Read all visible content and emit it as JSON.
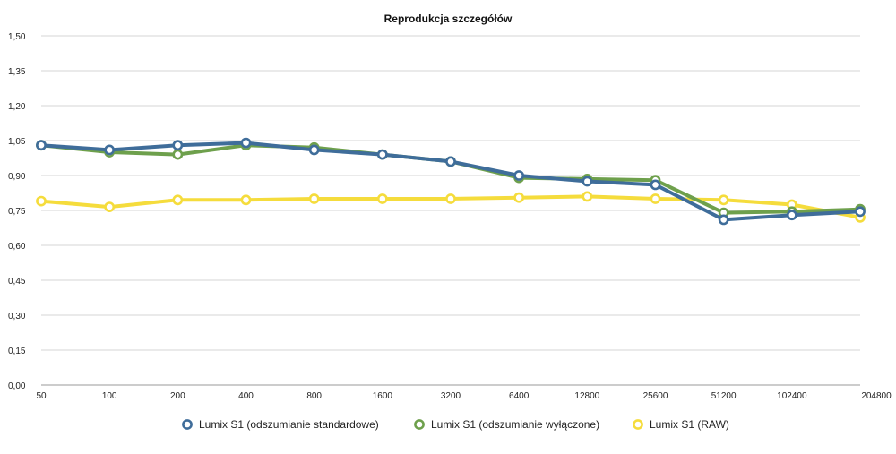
{
  "chart_data": {
    "type": "line",
    "title": "Reprodukcja szczegółów",
    "xlabel": "",
    "ylabel": "",
    "categories": [
      "50",
      "100",
      "200",
      "400",
      "800",
      "1600",
      "3200",
      "6400",
      "12800",
      "25600",
      "51200",
      "102400",
      "204800"
    ],
    "ylim": [
      0,
      1.5
    ],
    "yticks": [
      "0,00",
      "0,15",
      "0,30",
      "0,45",
      "0,60",
      "0,75",
      "0,90",
      "1,05",
      "1,20",
      "1,35",
      "1,50"
    ],
    "grid": true,
    "legend_position": "bottom",
    "series": [
      {
        "name": "Lumix S1 (odszumianie standardowe)",
        "color": "#3f6d9a",
        "values": [
          1.03,
          1.01,
          1.03,
          1.04,
          1.01,
          0.99,
          0.96,
          0.9,
          0.875,
          0.86,
          0.71,
          0.73,
          0.745
        ]
      },
      {
        "name": "Lumix S1 (odszumianie wyłączone)",
        "color": "#6ea04c",
        "values": [
          1.03,
          1.0,
          0.99,
          1.03,
          1.02,
          0.99,
          0.96,
          0.89,
          0.885,
          0.88,
          0.74,
          0.745,
          0.755
        ]
      },
      {
        "name": "Lumix S1 (RAW)",
        "color": "#f5dc3c",
        "values": [
          0.79,
          0.765,
          0.795,
          0.795,
          0.8,
          0.8,
          0.8,
          0.805,
          0.81,
          0.8,
          0.795,
          0.775,
          0.72
        ]
      }
    ]
  }
}
